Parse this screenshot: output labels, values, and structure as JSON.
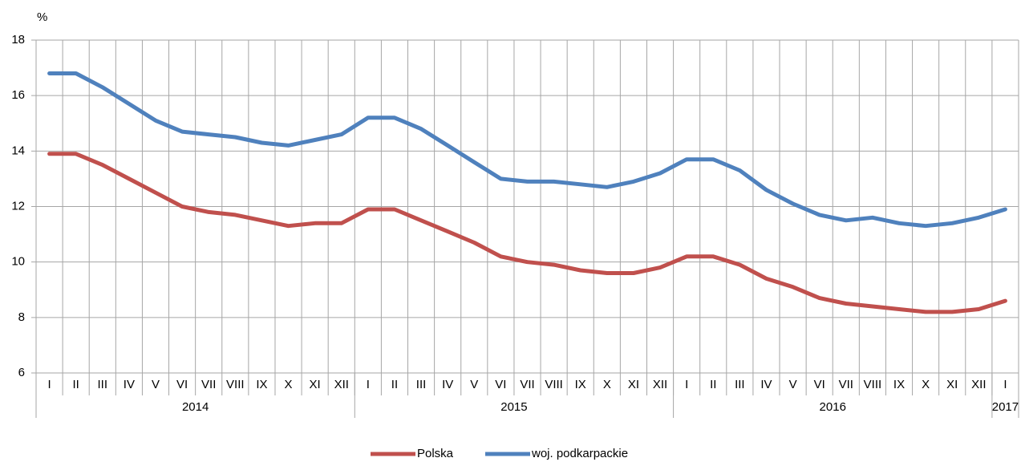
{
  "chart_data": {
    "type": "line",
    "y_label": "%",
    "categories": [
      "I",
      "II",
      "III",
      "IV",
      "V",
      "VI",
      "VII",
      "VIII",
      "IX",
      "X",
      "XI",
      "XII",
      "I",
      "II",
      "III",
      "IV",
      "V",
      "VI",
      "VII",
      "VIII",
      "IX",
      "X",
      "XI",
      "XII",
      "I",
      "II",
      "III",
      "IV",
      "V",
      "VI",
      "VII",
      "VIII",
      "IX",
      "X",
      "XI",
      "XII",
      "I"
    ],
    "category_groups": [
      {
        "label": "2014",
        "count": 12
      },
      {
        "label": "2015",
        "count": 12
      },
      {
        "label": "2016",
        "count": 12
      },
      {
        "label": "2017",
        "count": 1
      }
    ],
    "series": [
      {
        "name": "Polska",
        "color": "#c0504d",
        "values": [
          13.9,
          13.9,
          13.5,
          13.0,
          12.5,
          12.0,
          11.8,
          11.7,
          11.5,
          11.3,
          11.4,
          11.4,
          11.9,
          11.9,
          11.5,
          11.1,
          10.7,
          10.2,
          10.0,
          9.9,
          9.7,
          9.6,
          9.6,
          9.8,
          10.2,
          10.2,
          9.9,
          9.4,
          9.1,
          8.7,
          8.5,
          8.4,
          8.3,
          8.2,
          8.2,
          8.3,
          8.6
        ]
      },
      {
        "name": "woj. podkarpackie",
        "color": "#4f81bd",
        "values": [
          16.8,
          16.8,
          16.3,
          15.7,
          15.1,
          14.7,
          14.6,
          14.5,
          14.3,
          14.2,
          14.4,
          14.6,
          15.2,
          15.2,
          14.8,
          14.2,
          13.6,
          13.0,
          12.9,
          12.9,
          12.8,
          12.7,
          12.9,
          13.2,
          13.7,
          13.7,
          13.3,
          12.6,
          12.1,
          11.7,
          11.5,
          11.6,
          11.4,
          11.3,
          11.4,
          11.6,
          11.9
        ]
      }
    ],
    "ylim": [
      6,
      18
    ],
    "yticks": [
      6,
      8,
      10,
      12,
      14,
      16,
      18
    ],
    "grid": true,
    "legend": "bottom"
  }
}
